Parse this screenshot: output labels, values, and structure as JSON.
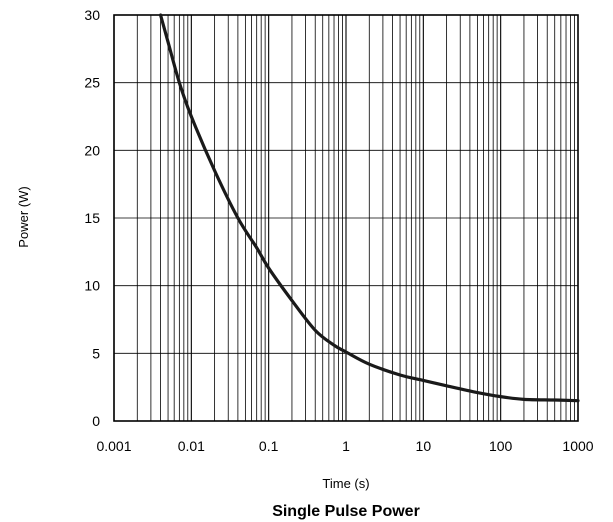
{
  "chart_data": {
    "type": "line",
    "title": "Single Pulse Power",
    "xlabel": "Time (s)",
    "ylabel": "Power  (W)",
    "x_scale": "log",
    "y_scale": "linear",
    "xlim": [
      0.001,
      1000
    ],
    "ylim": [
      0,
      30
    ],
    "x_ticks": [
      "0.001",
      "0.01",
      "0.1",
      "1",
      "10",
      "100",
      "1000"
    ],
    "y_ticks": [
      "0",
      "5",
      "10",
      "15",
      "20",
      "25",
      "30"
    ],
    "grid": true,
    "series": [
      {
        "color": "#1a1a1a",
        "x": [
          0.004,
          0.005,
          0.007,
          0.01,
          0.02,
          0.04,
          0.07,
          0.1,
          0.2,
          0.4,
          0.7,
          1,
          2,
          5,
          10,
          20,
          50,
          100,
          200,
          500,
          1000
        ],
        "y": [
          30,
          28,
          25,
          22.5,
          18.5,
          15,
          12.8,
          11.3,
          8.9,
          6.7,
          5.6,
          5.1,
          4.2,
          3.4,
          3.0,
          2.6,
          2.1,
          1.8,
          1.6,
          1.55,
          1.5
        ]
      }
    ]
  }
}
